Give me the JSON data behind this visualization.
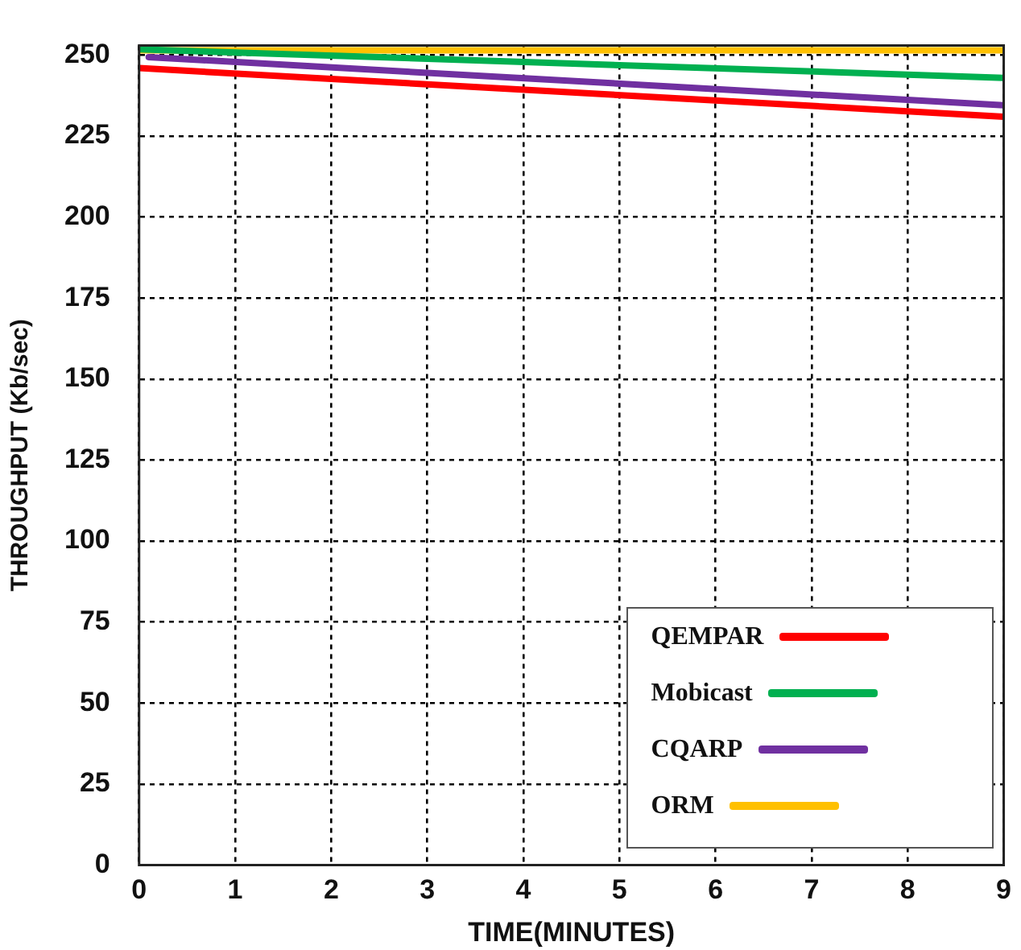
{
  "chart_data": {
    "type": "line",
    "xlabel": "TIME(MINUTES)",
    "ylabel": "THROUGHPUT (Kb/sec)",
    "xlim": [
      0,
      9
    ],
    "xticks": [
      0,
      1,
      2,
      3,
      4,
      5,
      6,
      7,
      8,
      9
    ],
    "ylim": [
      0,
      253
    ],
    "yticks": [
      0,
      25,
      50,
      75,
      100,
      125,
      150,
      175,
      200,
      225,
      250
    ],
    "grid": true,
    "legend": "bottom right",
    "marker": "none",
    "line_style": "solid",
    "series": [
      {
        "name": "QEMPAR",
        "color": "#ff0000",
        "x": [
          0,
          9
        ],
        "values": [
          246,
          231
        ]
      },
      {
        "name": "Mobicast",
        "color": "#00b050",
        "x": [
          0,
          9
        ],
        "values": [
          251.8,
          243
        ]
      },
      {
        "name": "CQARP",
        "color": "#7030a0",
        "x": [
          0.1,
          9
        ],
        "values": [
          249.4,
          234.5
        ]
      },
      {
        "name": "ORM",
        "color": "#ffc000",
        "x": [
          0,
          9
        ],
        "values": [
          251.5,
          251.5
        ]
      }
    ]
  }
}
